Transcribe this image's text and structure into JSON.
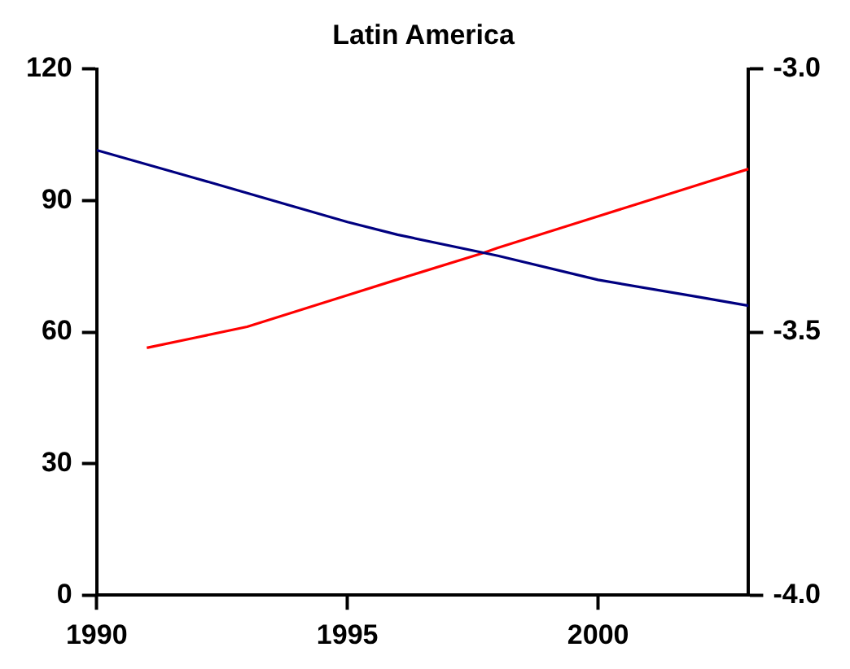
{
  "chart_data": {
    "type": "line",
    "title": "Latin America",
    "x": [
      1990,
      1992,
      1994,
      1995,
      1996,
      1998,
      2000,
      2002,
      2003
    ],
    "series": [
      {
        "color": "#000080",
        "values": [
          101.5,
          95.0,
          88.4,
          85.1,
          82.2,
          77.4,
          71.9,
          68.0,
          66.0
        ]
      },
      {
        "color": "#ff0000",
        "axis": "y2",
        "x": [
          1991,
          1992,
          1993,
          1995,
          1996,
          1997.7,
          1998,
          2000,
          2002,
          2003
        ],
        "values": [
          -3.53,
          -3.51,
          -3.49,
          -3.43,
          -3.4,
          -3.35,
          -3.34,
          -3.28,
          -3.22,
          -3.19
        ]
      }
    ],
    "xlim": [
      1990,
      2003
    ],
    "xticks": [
      1990,
      1995,
      2000
    ],
    "ylim": [
      0,
      120
    ],
    "yticks": [
      0,
      30,
      60,
      90,
      120
    ],
    "y2lim": [
      -4,
      -3
    ],
    "y2ticks": [
      {
        "value": -4,
        "label": "-4.0"
      },
      {
        "value": -3.5,
        "label": "-3.5"
      },
      {
        "value": -3,
        "label": "-3.0"
      }
    ],
    "grid": false,
    "legend": false,
    "marker": "none",
    "line_style": "solid"
  }
}
